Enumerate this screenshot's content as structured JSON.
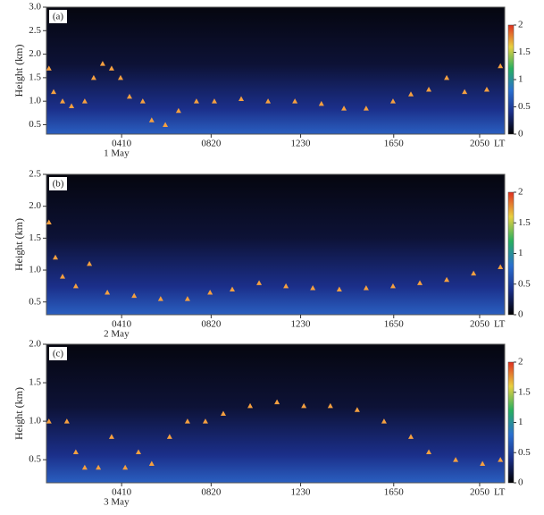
{
  "chart_data": [
    {
      "type": "scatter",
      "panel_label": "(a)",
      "ylabel": "Height (km)",
      "date": "1 May",
      "x_unit": "LT",
      "xlim": [
        40,
        1320
      ],
      "xticks": [
        {
          "value": 250,
          "label": "0410"
        },
        {
          "value": 500,
          "label": "0820"
        },
        {
          "value": 750,
          "label": "1230"
        },
        {
          "value": 1010,
          "label": "1650"
        },
        {
          "value": 1250,
          "label": "2050"
        }
      ],
      "ylim": [
        0.3,
        3.0
      ],
      "yticks": [
        0.5,
        {
          "value": 1,
          "label": "1.0"
        },
        1.5,
        {
          "value": 2,
          "label": "2.0"
        },
        2.5,
        {
          "value": 3,
          "label": "3.0"
        }
      ],
      "marker_color": "#f5a040",
      "x": [
        47,
        60,
        85,
        110,
        147,
        172,
        197,
        222,
        247,
        272,
        309,
        334,
        372,
        409,
        459,
        509,
        584,
        659,
        734,
        808,
        871,
        933,
        1008,
        1058,
        1108,
        1158,
        1208,
        1270,
        1308
      ],
      "values": [
        1.7,
        1.2,
        1.0,
        0.9,
        1.0,
        1.5,
        1.8,
        1.7,
        1.5,
        1.1,
        1.0,
        0.6,
        0.5,
        0.8,
        1.0,
        1.0,
        1.05,
        1.0,
        1.0,
        0.95,
        0.85,
        0.85,
        1.0,
        1.15,
        1.25,
        1.5,
        1.2,
        1.25,
        1.75
      ],
      "colorbar": {
        "lim": [
          0,
          2
        ],
        "ticks": [
          0,
          0.5,
          1,
          1.5,
          2
        ],
        "colors": [
          "#000000",
          "#1b2f8a",
          "#2a6fd0",
          "#28b060",
          "#e8d040",
          "#e03020"
        ]
      }
    },
    {
      "type": "scatter",
      "panel_label": "(b)",
      "ylabel": "Height (km)",
      "date": "2 May",
      "x_unit": "LT",
      "xlim": [
        40,
        1320
      ],
      "xticks": [
        {
          "value": 250,
          "label": "0410"
        },
        {
          "value": 500,
          "label": "0820"
        },
        {
          "value": 750,
          "label": "1230"
        },
        {
          "value": 1010,
          "label": "1650"
        },
        {
          "value": 1250,
          "label": "2050"
        }
      ],
      "ylim": [
        0.3,
        2.5
      ],
      "yticks": [
        0.5,
        {
          "value": 1,
          "label": "1.0"
        },
        1.5,
        {
          "value": 2,
          "label": "2.0"
        },
        2.5
      ],
      "marker_color": "#f5a040",
      "x": [
        47,
        65,
        85,
        122,
        160,
        210,
        285,
        359,
        434,
        497,
        559,
        634,
        709,
        784,
        858,
        933,
        1008,
        1083,
        1158,
        1233,
        1308
      ],
      "values": [
        1.75,
        1.2,
        0.9,
        0.75,
        1.1,
        0.65,
        0.6,
        0.55,
        0.55,
        0.65,
        0.7,
        0.8,
        0.75,
        0.72,
        0.7,
        0.72,
        0.75,
        0.8,
        0.85,
        0.95,
        1.05
      ],
      "colorbar": {
        "lim": [
          0,
          2
        ],
        "ticks": [
          0,
          0.5,
          1,
          1.5,
          2
        ],
        "colors": [
          "#000000",
          "#1b2f8a",
          "#2a6fd0",
          "#28b060",
          "#e8d040",
          "#e03020"
        ]
      }
    },
    {
      "type": "scatter",
      "panel_label": "(c)",
      "ylabel": "Height (km)",
      "date": "3 May",
      "x_unit": "LT",
      "xlim": [
        40,
        1320
      ],
      "xticks": [
        {
          "value": 250,
          "label": "0410"
        },
        {
          "value": 500,
          "label": "0820"
        },
        {
          "value": 750,
          "label": "1230"
        },
        {
          "value": 1010,
          "label": "1650"
        },
        {
          "value": 1250,
          "label": "2050"
        }
      ],
      "ylim": [
        0.2,
        2.0
      ],
      "yticks": [
        0.5,
        {
          "value": 1,
          "label": "1.0"
        },
        1.5,
        {
          "value": 2,
          "label": "2.0"
        }
      ],
      "marker_color": "#f5a040",
      "x": [
        47,
        97,
        122,
        147,
        185,
        222,
        260,
        297,
        334,
        384,
        434,
        484,
        534,
        609,
        684,
        759,
        833,
        908,
        983,
        1058,
        1108,
        1183,
        1258,
        1308
      ],
      "values": [
        1.0,
        1.0,
        0.6,
        0.4,
        0.4,
        0.8,
        0.4,
        0.6,
        0.45,
        0.8,
        1.0,
        1.0,
        1.1,
        1.2,
        1.25,
        1.2,
        1.2,
        1.15,
        1.0,
        0.8,
        0.6,
        0.5,
        0.45,
        0.5
      ],
      "colorbar": {
        "lim": [
          0,
          2
        ],
        "ticks": [
          0,
          0.5,
          1,
          1.5,
          2
        ],
        "colors": [
          "#000000",
          "#1b2f8a",
          "#2a6fd0",
          "#28b060",
          "#e8d040",
          "#e03020"
        ]
      }
    }
  ]
}
